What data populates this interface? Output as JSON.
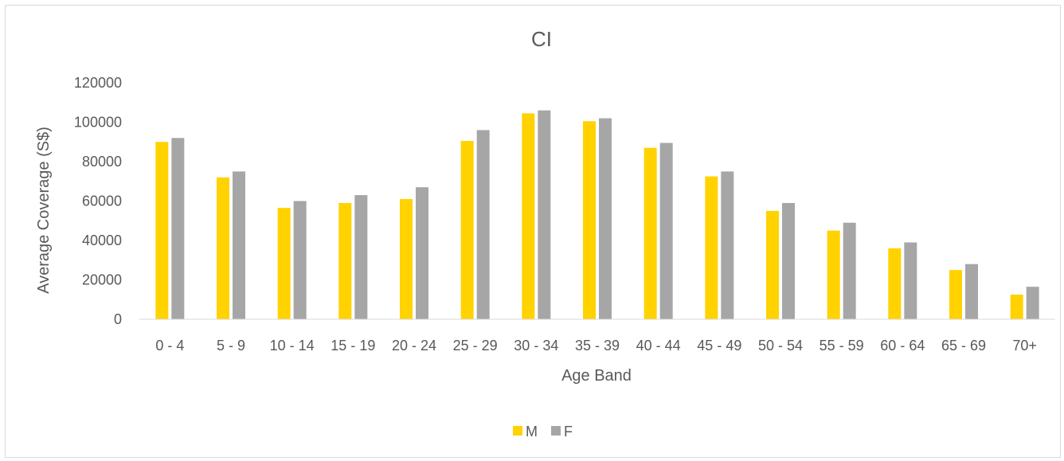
{
  "chart_data": {
    "type": "bar",
    "title": "CI",
    "xlabel": "Age Band",
    "ylabel": "Average Coverage (S$)",
    "ylim": [
      0,
      120000
    ],
    "yticks": [
      0,
      20000,
      40000,
      60000,
      80000,
      100000,
      120000
    ],
    "grid": false,
    "legend_position": "bottom",
    "categories": [
      "0 - 4",
      "5 - 9",
      "10 - 14",
      "15 - 19",
      "20 - 24",
      "25 - 29",
      "30 - 34",
      "35 - 39",
      "40 - 44",
      "45 - 49",
      "50 - 54",
      "55 - 59",
      "60 - 64",
      "65 - 69",
      "70+"
    ],
    "series": [
      {
        "name": "M",
        "color": "#FFD200",
        "values": [
          90000,
          72000,
          56500,
          59000,
          61000,
          90500,
          104500,
          100500,
          87000,
          72500,
          55000,
          45000,
          36000,
          25000,
          12500
        ]
      },
      {
        "name": "F",
        "color": "#A6A6A6",
        "values": [
          92000,
          75000,
          60000,
          63000,
          67000,
          96000,
          106000,
          102000,
          89500,
          75000,
          59000,
          49000,
          39000,
          28000,
          16500
        ]
      }
    ]
  }
}
